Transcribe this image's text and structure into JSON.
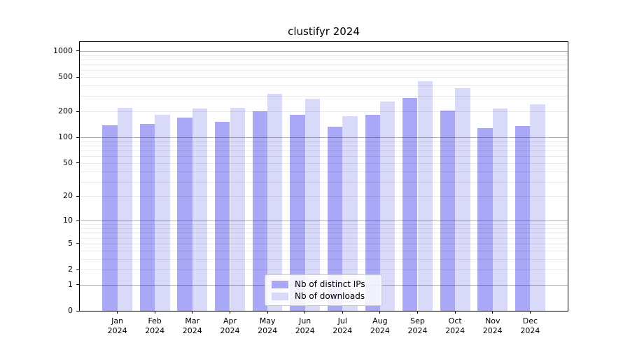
{
  "chart_data": {
    "type": "bar",
    "title": "clustifyr 2024",
    "yscale": "log1p",
    "ylim": [
      0,
      1270
    ],
    "yticks": [
      0,
      1,
      2,
      5,
      10,
      20,
      50,
      100,
      200,
      500,
      1000
    ],
    "grid": {
      "major_at": [
        1,
        10,
        100,
        1000
      ],
      "minor_decades": [
        1,
        10,
        100
      ]
    },
    "legend_position": "lower center",
    "categories": [
      {
        "month": "Jan",
        "year": "2024"
      },
      {
        "month": "Feb",
        "year": "2024"
      },
      {
        "month": "Mar",
        "year": "2024"
      },
      {
        "month": "Apr",
        "year": "2024"
      },
      {
        "month": "May",
        "year": "2024"
      },
      {
        "month": "Jun",
        "year": "2024"
      },
      {
        "month": "Jul",
        "year": "2024"
      },
      {
        "month": "Aug",
        "year": "2024"
      },
      {
        "month": "Sep",
        "year": "2024"
      },
      {
        "month": "Oct",
        "year": "2024"
      },
      {
        "month": "Nov",
        "year": "2024"
      },
      {
        "month": "Dec",
        "year": "2024"
      }
    ],
    "series": [
      {
        "id": "distinct-ips",
        "name": "Nb of distinct IPs",
        "color": "#a8a8f6",
        "values": [
          139,
          142,
          168,
          152,
          202,
          184,
          132,
          182,
          284,
          204,
          128,
          135
        ]
      },
      {
        "id": "downloads",
        "name": "Nb of downloads",
        "color": "#d9d9f9",
        "values": [
          221,
          183,
          216,
          220,
          321,
          280,
          176,
          262,
          445,
          369,
          216,
          243
        ]
      }
    ],
    "colors": {
      "spine": "#000000",
      "text": "#000000",
      "major_grid": "rgba(0,0,0,0.30)",
      "minor_grid": "rgba(0,0,0,0.08)",
      "legend_border": "#cccccc"
    }
  }
}
